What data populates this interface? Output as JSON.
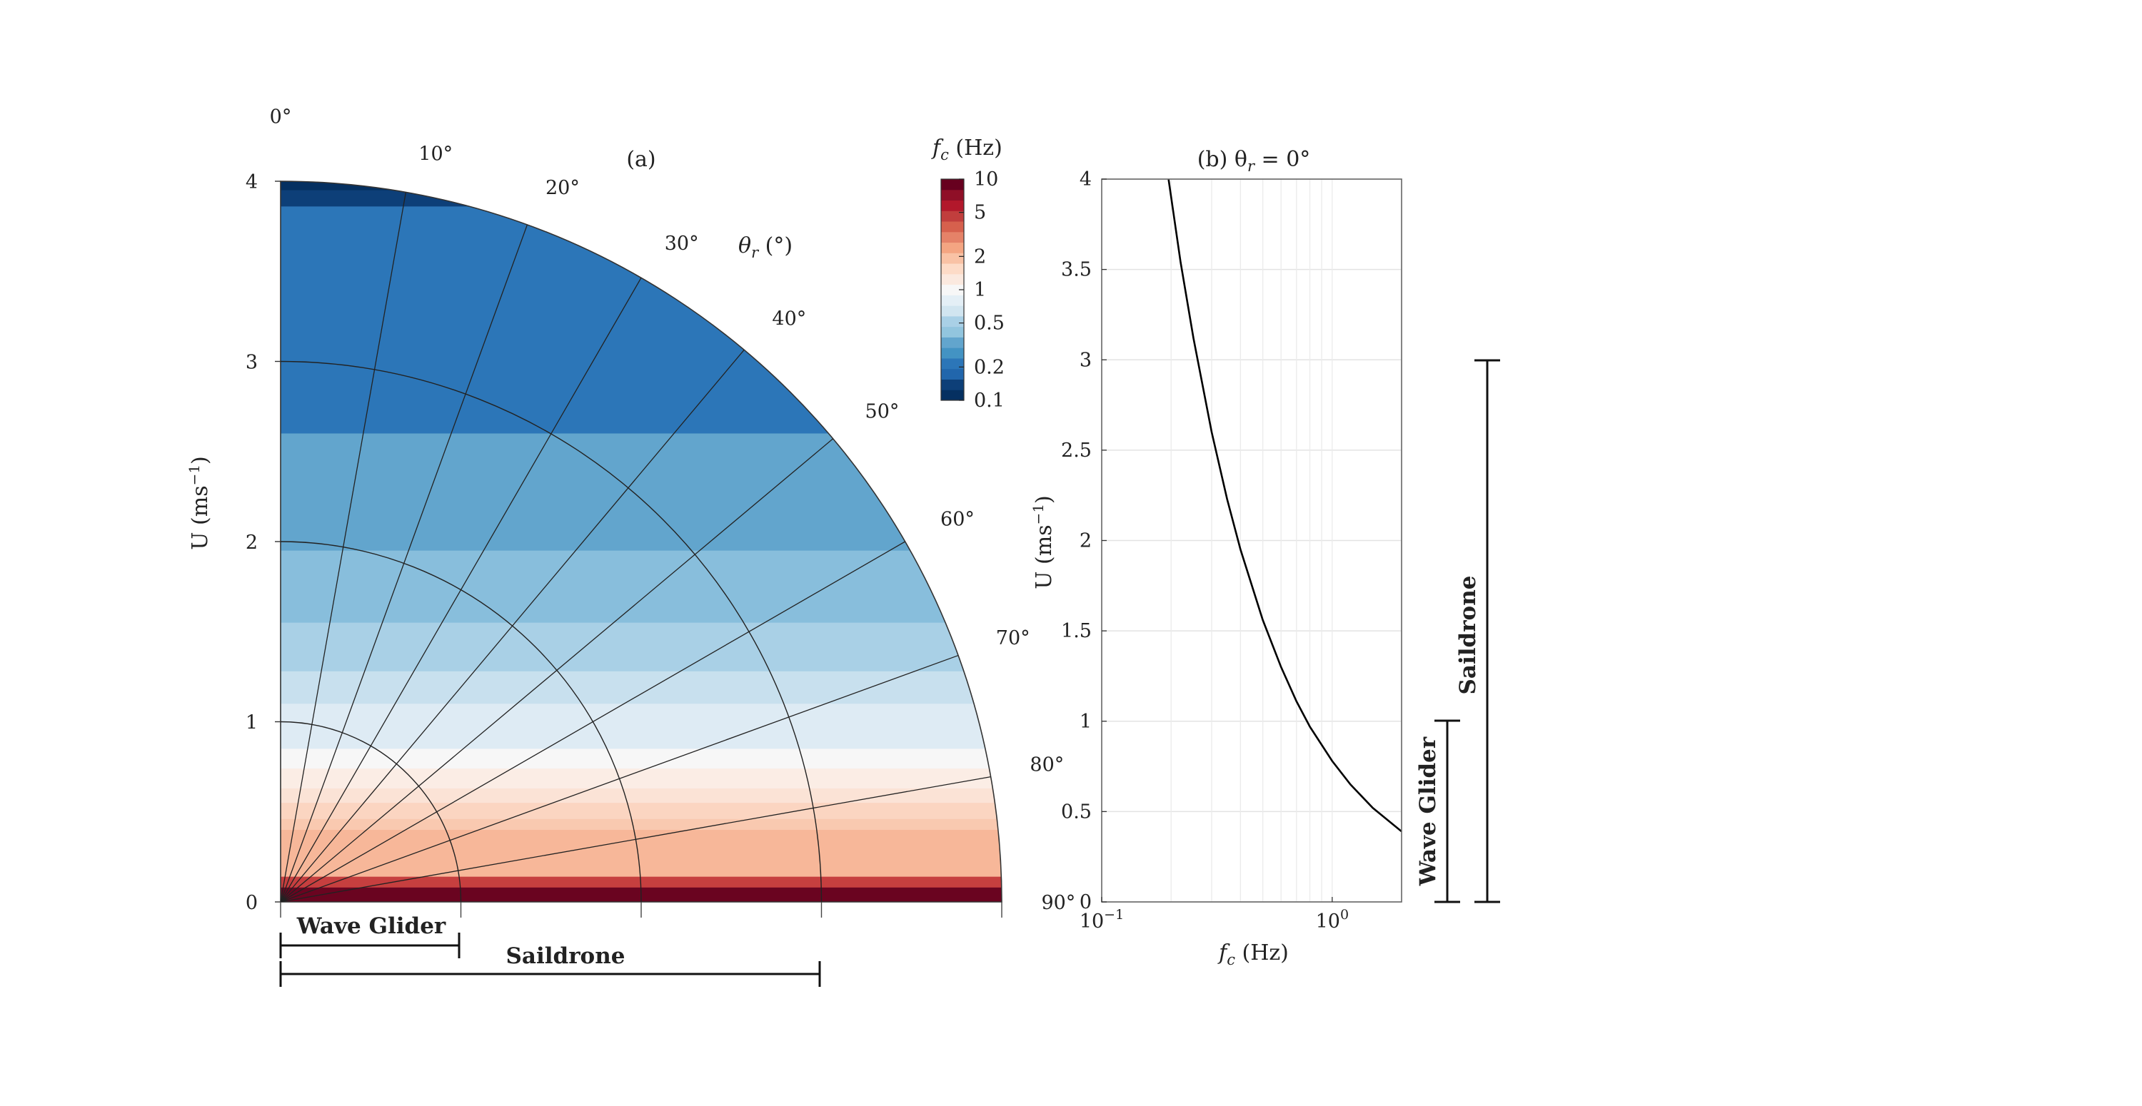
{
  "panel_a": {
    "title": "(a)",
    "colorbar_label": "f",
    "colorbar_label_sub": "c",
    "colorbar_label_unit": " (Hz)",
    "angle_axis_label": "θ",
    "angle_axis_label_sub": "r",
    "angle_axis_label_unit": " (°)",
    "y_label": "U (ms",
    "y_label_sup": "−1",
    "y_label_end": ")",
    "wave_glider_label": "Wave Glider",
    "saildrone_label": "Saildrone"
  },
  "panel_b": {
    "title": "(b) θ",
    "title_sub": "r",
    "title_end": " = 0°",
    "x_label": "f",
    "x_label_sub": "c",
    "x_label_end": " (Hz)",
    "y_label": "U (ms",
    "y_label_sup": "−1",
    "y_label_end": ")",
    "wave_glider_label": "Wave Glider",
    "saildrone_label": "Saildrone"
  },
  "chart_data": [
    {
      "type": "heatmap",
      "title": "(a)",
      "radial_axis": "U (ms−1)",
      "angular_axis": "θr (°)",
      "r_ticks": [
        "0",
        "1",
        "2",
        "3",
        "4"
      ],
      "r_values": [
        0,
        1,
        2,
        3,
        4
      ],
      "theta_ticks": [
        "0°",
        "10°",
        "20°",
        "30°",
        "40°",
        "50°",
        "60°",
        "70°",
        "80°",
        "90°"
      ],
      "theta_values": [
        0,
        10,
        20,
        30,
        40,
        50,
        60,
        70,
        80,
        90
      ],
      "colorbar": {
        "label": "fc (Hz)",
        "scale": "log",
        "range": [
          0.1,
          10
        ],
        "tick_labels": [
          "10",
          "5",
          "2",
          "1",
          "0.5",
          "0.2",
          "0.1"
        ],
        "tick_values": [
          10,
          5,
          2,
          1,
          0.5,
          0.2,
          0.1
        ],
        "colors": [
          "#053061",
          "#0d3f78",
          "#2166ac",
          "#2c76b8",
          "#4393c3",
          "#62a5cd",
          "#92c5de",
          "#a9d0e6",
          "#d1e5f0",
          "#e4eff6",
          "#f7f7f7",
          "#fbe9df",
          "#fddbc7",
          "#f9c2a5",
          "#f4a582",
          "#e58268",
          "#d6604d",
          "#c13e3d",
          "#b2182b",
          "#8f0f27",
          "#67001f"
        ]
      },
      "color_bands": [
        {
          "u_min": 3.95,
          "u_max": 4.0,
          "fc": 0.19,
          "color": "#053061"
        },
        {
          "u_min": 3.86,
          "u_max": 3.95,
          "fc": 0.19,
          "color": "#0d3f78"
        },
        {
          "u_min": 2.6,
          "u_max": 3.86,
          "fc": 0.25,
          "color": "#2c76b8"
        },
        {
          "u_min": 1.95,
          "u_max": 2.6,
          "fc": 0.35,
          "color": "#62a5cd"
        },
        {
          "u_min": 1.55,
          "u_max": 1.95,
          "fc": 0.45,
          "color": "#88bedc"
        },
        {
          "u_min": 1.28,
          "u_max": 1.55,
          "fc": 0.55,
          "color": "#a9d0e6"
        },
        {
          "u_min": 1.1,
          "u_max": 1.28,
          "fc": 0.65,
          "color": "#c8e0ee"
        },
        {
          "u_min": 0.85,
          "u_max": 1.1,
          "fc": 0.8,
          "color": "#deebf4"
        },
        {
          "u_min": 0.74,
          "u_max": 0.85,
          "fc": 0.9,
          "color": "#f7f7f7"
        },
        {
          "u_min": 0.63,
          "u_max": 0.74,
          "fc": 1.1,
          "color": "#fbede5"
        },
        {
          "u_min": 0.55,
          "u_max": 0.63,
          "fc": 1.2,
          "color": "#fbe3d6"
        },
        {
          "u_min": 0.46,
          "u_max": 0.55,
          "fc": 1.4,
          "color": "#fbd5c1"
        },
        {
          "u_min": 0.4,
          "u_max": 0.46,
          "fc": 1.6,
          "color": "#f9c9b0"
        },
        {
          "u_min": 0.14,
          "u_max": 0.4,
          "fc": 2.5,
          "color": "#f7b799"
        },
        {
          "u_min": 0.08,
          "u_max": 0.14,
          "fc": 5,
          "color": "#c63f3f"
        },
        {
          "u_min": 0.0,
          "u_max": 0.08,
          "fc": 8,
          "color": "#6a0420"
        }
      ],
      "annotations": [
        {
          "label": "Wave Glider",
          "u_range": [
            0,
            1
          ]
        },
        {
          "label": "Saildrone",
          "u_range": [
            0,
            3
          ]
        }
      ]
    },
    {
      "type": "line",
      "title": "(b) θr = 0°",
      "xlabel": "fc (Hz)",
      "ylabel": "U (ms−1)",
      "x_scale": "log",
      "xlim": [
        0.1,
        2
      ],
      "ylim": [
        0,
        4
      ],
      "grid": true,
      "x_ticks": [
        0.1,
        1
      ],
      "x_tick_labels": [
        "10",
        "10"
      ],
      "x_tick_exponents": [
        "−1",
        "0"
      ],
      "y_ticks": [
        0,
        0.5,
        1,
        1.5,
        2,
        2.5,
        3,
        3.5,
        4
      ],
      "y_tick_labels": [
        "0",
        "0.5",
        "1",
        "1.5",
        "2",
        "2.5",
        "3",
        "3.5",
        "4"
      ],
      "series": [
        {
          "x": [
            0.195,
            0.22,
            0.25,
            0.3,
            0.35,
            0.4,
            0.5,
            0.6,
            0.7,
            0.8,
            1.0,
            1.2,
            1.5,
            2.0
          ],
          "y": [
            4.0,
            3.54,
            3.12,
            2.6,
            2.23,
            1.95,
            1.56,
            1.3,
            1.11,
            0.97,
            0.78,
            0.65,
            0.52,
            0.39
          ]
        }
      ],
      "annotations": [
        {
          "label": "Wave Glider",
          "u_range": [
            0,
            1
          ]
        },
        {
          "label": "Saildrone",
          "u_range": [
            0,
            3
          ]
        }
      ]
    }
  ]
}
